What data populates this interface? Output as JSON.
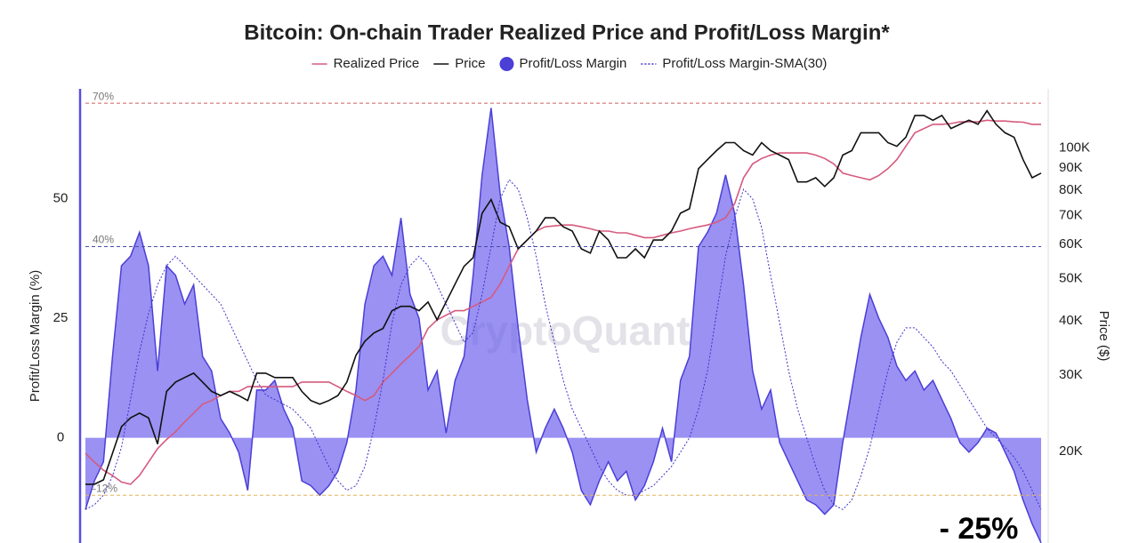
{
  "chart_data": {
    "type": "dual-axis-area-line",
    "title": "Bitcoin: On-chain Trader Realized Price and Profit/Loss Margin*",
    "y_label": "Profit/Loss Margin (%)",
    "y2_label": "Price ($)",
    "watermark": "CryptoQuant",
    "ylim": [
      -22,
      73
    ],
    "yticks": [
      0,
      25,
      50
    ],
    "y2lim": [
      12300,
      137000
    ],
    "y2scale": "log",
    "y2ticks": [
      {
        "value": 20000,
        "label": "20K"
      },
      {
        "value": 30000,
        "label": "30K"
      },
      {
        "value": 40000,
        "label": "40K"
      },
      {
        "value": 50000,
        "label": "50K"
      },
      {
        "value": 60000,
        "label": "60K"
      },
      {
        "value": 70000,
        "label": "70K"
      },
      {
        "value": 80000,
        "label": "80K"
      },
      {
        "value": 90000,
        "label": "90K"
      },
      {
        "value": 100000,
        "label": "100K"
      }
    ],
    "reference_lines": [
      {
        "value": 70,
        "label": "70%",
        "color": "#c9605f"
      },
      {
        "value": 40,
        "label": "40%",
        "color": "#4b4aa8"
      },
      {
        "value": -12,
        "label": "-12%",
        "color": "#e6b45a"
      }
    ],
    "annotations": [
      "- 25%"
    ],
    "series": [
      {
        "name": "Realized Price",
        "color": "#d65a7e",
        "style": "line",
        "axis": "y2",
        "values": [
          19800,
          18900,
          18100,
          17600,
          17000,
          16800,
          17600,
          18900,
          20300,
          21300,
          22200,
          23400,
          24500,
          25700,
          26200,
          26900,
          27500,
          27500,
          28200,
          28200,
          28200,
          28200,
          28200,
          28200,
          28900,
          28900,
          28900,
          28900,
          28200,
          27500,
          26900,
          26200,
          26900,
          28900,
          30300,
          31800,
          33300,
          34900,
          38400,
          40200,
          41200,
          42200,
          42200,
          43200,
          44200,
          45300,
          48600,
          53400,
          58600,
          61400,
          64400,
          65900,
          66200,
          66500,
          66500,
          65900,
          65200,
          64400,
          64400,
          63800,
          63800,
          63000,
          62200,
          62200,
          63000,
          63800,
          64400,
          65200,
          65900,
          66500,
          67500,
          69100,
          74400,
          85500,
          92000,
          94700,
          96400,
          97500,
          97500,
          97500,
          97500,
          96400,
          94700,
          92000,
          87600,
          86500,
          85500,
          84500,
          86500,
          89700,
          94100,
          101000,
          108500,
          111000,
          113500,
          113500,
          114000,
          115000,
          115000,
          115000,
          116000,
          115500,
          115500,
          115000,
          114800,
          113500,
          113500
        ]
      },
      {
        "name": "Price",
        "color": "#111111",
        "style": "line",
        "axis": "y2",
        "values": [
          16800,
          16800,
          17200,
          19800,
          22800,
          23900,
          24500,
          23900,
          20800,
          27500,
          28900,
          29600,
          30300,
          28900,
          27500,
          26900,
          27500,
          26900,
          26200,
          30300,
          30300,
          29600,
          29600,
          29600,
          27500,
          26200,
          25700,
          26200,
          26900,
          28900,
          33300,
          35900,
          37500,
          38400,
          42200,
          43200,
          43200,
          42200,
          44200,
          40200,
          44200,
          48600,
          53400,
          55900,
          70800,
          76100,
          67500,
          65900,
          58600,
          61400,
          64400,
          69100,
          69100,
          65900,
          64400,
          58600,
          57300,
          64400,
          61400,
          55900,
          55900,
          58600,
          55900,
          61400,
          61400,
          64400,
          70800,
          72500,
          89700,
          94100,
          98700,
          103000,
          103000,
          98700,
          96400,
          103000,
          98700,
          96400,
          94100,
          83600,
          83600,
          85500,
          81600,
          85500,
          96400,
          98700,
          108500,
          108500,
          108500,
          103000,
          101000,
          106000,
          119000,
          119000,
          116000,
          119000,
          111000,
          113500,
          116000,
          113500,
          122000,
          113500,
          108500,
          106000,
          94100,
          85500,
          87600
        ]
      },
      {
        "name": "Profit/Loss Margin",
        "color": "#6f63ee",
        "style": "area",
        "values": [
          -15,
          -9,
          -5,
          17,
          36,
          38,
          43,
          36,
          14,
          36,
          34,
          28,
          32,
          17,
          14,
          4,
          1,
          -3,
          -11,
          10,
          10,
          12,
          6,
          2,
          -9,
          -10,
          -12,
          -10,
          -7,
          -1,
          10,
          28,
          36,
          38,
          34,
          46,
          30,
          25,
          10,
          14,
          1,
          12,
          17,
          34,
          55,
          69,
          51,
          40,
          23,
          8,
          -3,
          2,
          6,
          2,
          -3,
          -11,
          -14,
          -9,
          -5,
          -9,
          -7,
          -13,
          -10,
          -5,
          2,
          -5,
          12,
          17,
          40,
          43,
          47,
          55,
          47,
          32,
          14,
          6,
          10,
          -1,
          -5,
          -9,
          -13,
          -14,
          -16,
          -14,
          -1,
          10,
          21,
          30,
          25,
          21,
          15,
          12,
          14,
          10,
          12,
          8,
          4,
          -1,
          -3,
          -1,
          2,
          1,
          -3,
          -7,
          -13,
          -18,
          -22
        ]
      },
      {
        "name": "Profit/Loss Margin-SMA(30)",
        "color": "#3d33c9",
        "style": "dashed",
        "values": [
          -15,
          -14,
          -12,
          -8,
          -2,
          8,
          18,
          26,
          32,
          36,
          38,
          36,
          34,
          32,
          30,
          28,
          24,
          20,
          16,
          12,
          9,
          8,
          7,
          6,
          4,
          2,
          -2,
          -6,
          -9,
          -11,
          -10,
          -6,
          2,
          12,
          24,
          32,
          36,
          38,
          36,
          32,
          28,
          24,
          20,
          22,
          30,
          40,
          50,
          54,
          52,
          46,
          38,
          28,
          20,
          12,
          6,
          2,
          -2,
          -6,
          -9,
          -11,
          -12,
          -12,
          -11,
          -10,
          -8,
          -6,
          -3,
          0,
          6,
          14,
          26,
          38,
          46,
          52,
          50,
          44,
          34,
          24,
          14,
          6,
          0,
          -6,
          -11,
          -14,
          -15,
          -13,
          -8,
          -2,
          6,
          14,
          20,
          23,
          23,
          21,
          19,
          16,
          14,
          11,
          8,
          5,
          2,
          0,
          -2,
          -4,
          -7,
          -11,
          -15
        ]
      }
    ]
  }
}
